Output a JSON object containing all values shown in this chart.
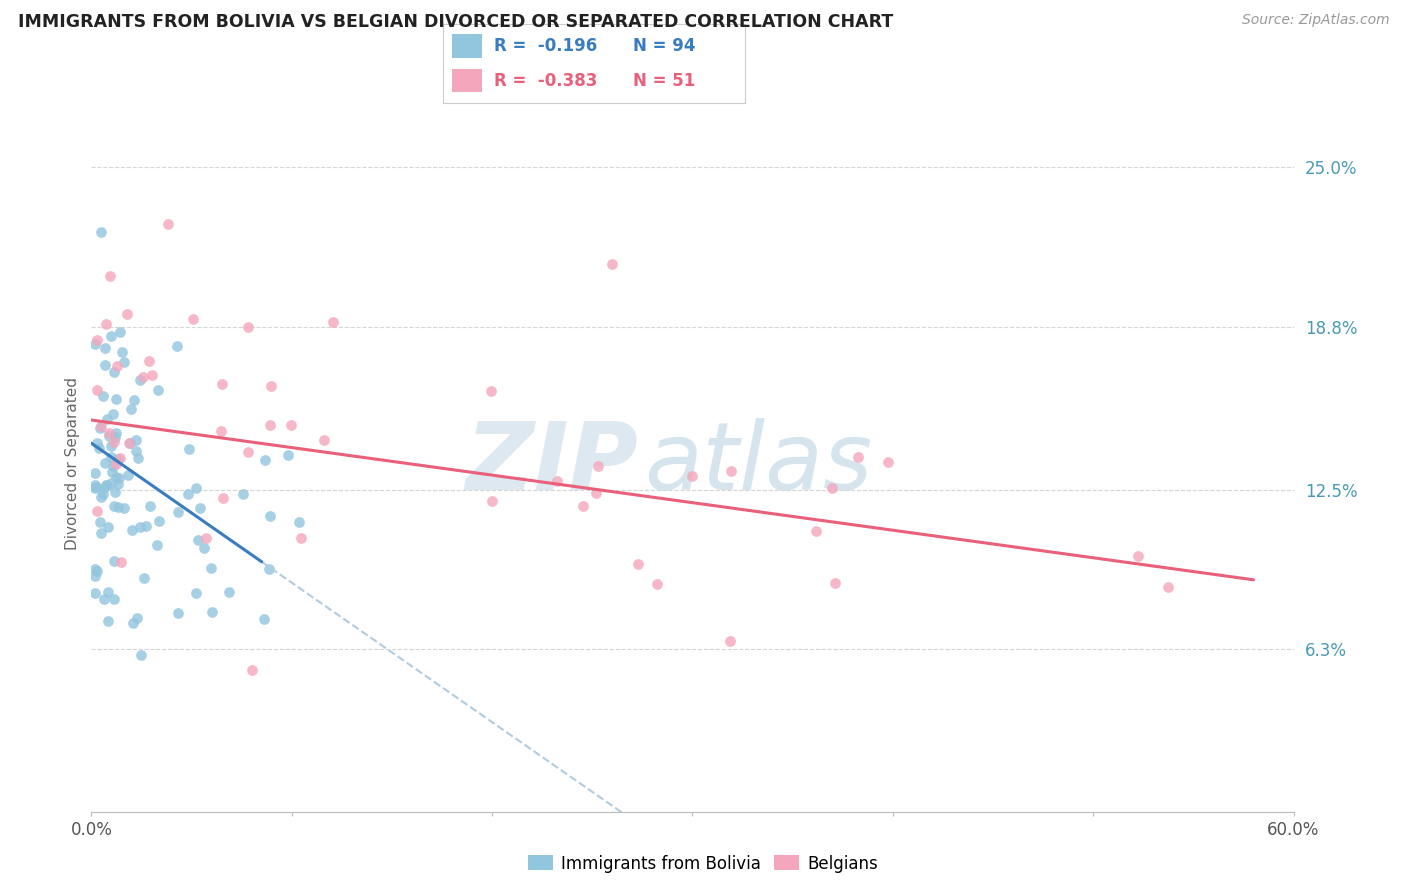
{
  "title": "IMMIGRANTS FROM BOLIVIA VS BELGIAN DIVORCED OR SEPARATED CORRELATION CHART",
  "source_text": "Source: ZipAtlas.com",
  "ylabel_text": "Divorced or Separated",
  "legend_label1": "Immigrants from Bolivia",
  "legend_label2": "Belgians",
  "legend_r1": "-0.196",
  "legend_n1": "94",
  "legend_r2": "-0.383",
  "legend_n2": "51",
  "color_blue": "#92c5de",
  "color_pink": "#f4a6bc",
  "color_blue_line": "#3a7dbf",
  "color_pink_line": "#e8607a",
  "color_dashed": "#b0cce0",
  "color_ytick": "#4a9ab5",
  "color_xtick": "#555555",
  "xmin": 0.0,
  "xmax": 0.6,
  "ymin": 0.0,
  "ymax": 0.27,
  "ytick_vals": [
    0.0,
    0.063,
    0.125,
    0.188,
    0.25
  ],
  "ytick_labels": [
    "",
    "6.3%",
    "12.5%",
    "18.8%",
    "25.0%"
  ],
  "xtick_vals": [
    0.0,
    0.6
  ],
  "xtick_labels": [
    "0.0%",
    "60.0%"
  ],
  "watermark_zip": "ZIP",
  "watermark_atlas": "atlas",
  "blue_line_x0": 0.0,
  "blue_line_y0": 0.143,
  "blue_line_x1": 0.085,
  "blue_line_y1": 0.097,
  "blue_line_solid_end": 0.085,
  "blue_line_dashed_end": 0.6,
  "pink_line_x0": 0.0,
  "pink_line_y0": 0.152,
  "pink_line_x1": 0.58,
  "pink_line_y1": 0.09
}
